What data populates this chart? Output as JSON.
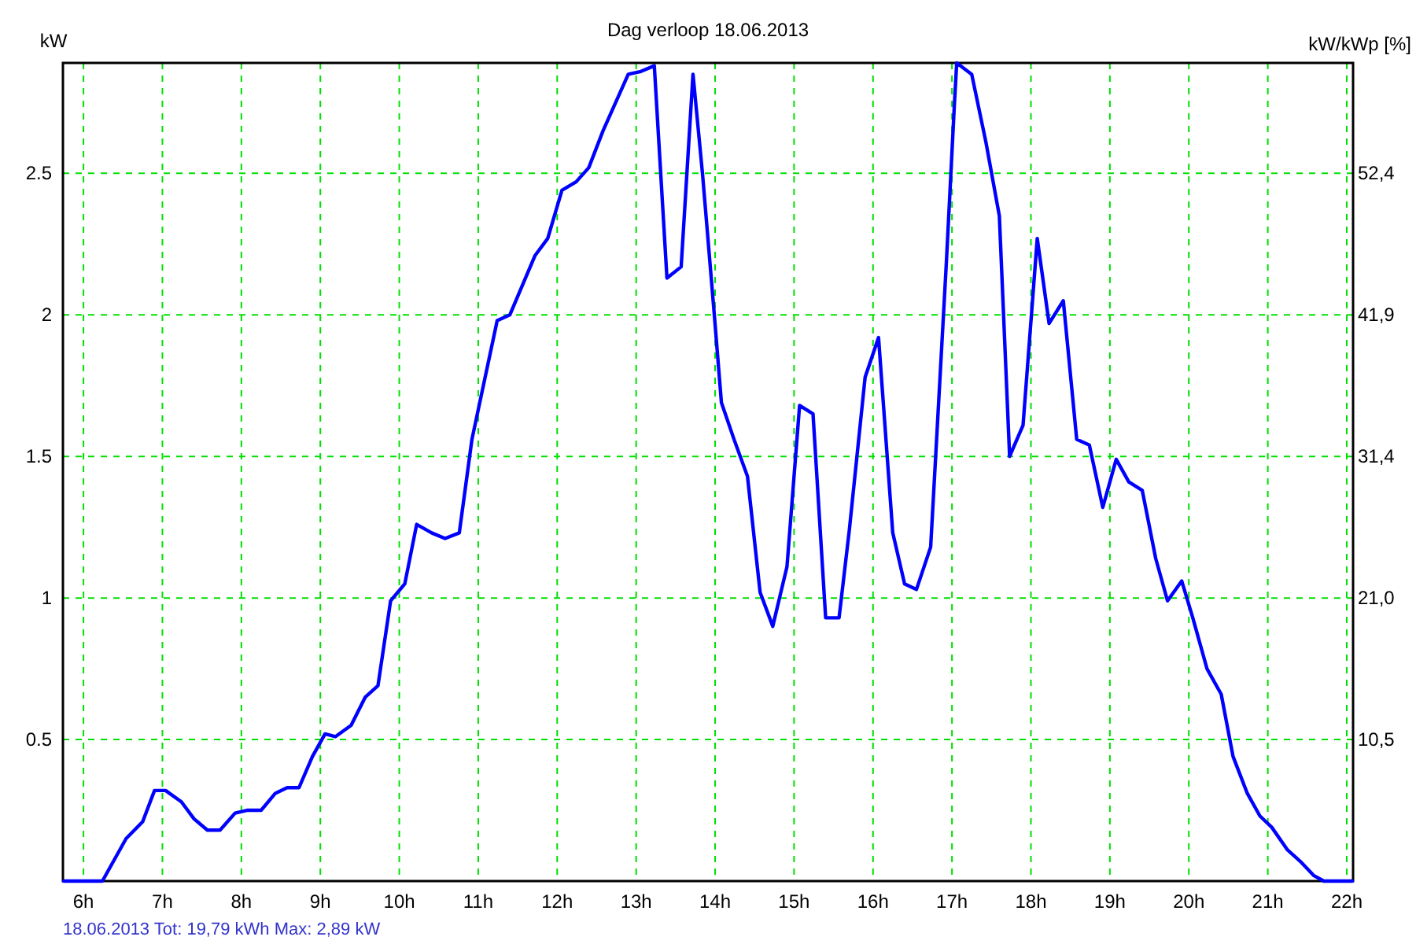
{
  "chart_data": {
    "type": "line",
    "title": "Dag  verloop 18.06.2013",
    "ylabel": "kW",
    "y2label": "kW/kWp [%]",
    "annotations": [
      "18.06.2013 Tot: 19,79 kWh Max: 2,89 kW"
    ],
    "x": [
      5.75,
      6.24,
      6.54,
      6.75,
      6.9,
      7.04,
      7.24,
      7.4,
      7.57,
      7.73,
      7.92,
      8.07,
      8.25,
      8.43,
      8.58,
      8.73,
      8.9,
      9.06,
      9.19,
      9.39,
      9.57,
      9.73,
      9.89,
      10.07,
      10.22,
      10.41,
      10.58,
      10.76,
      10.92,
      11.24,
      11.4,
      11.72,
      11.88,
      12.06,
      12.24,
      12.4,
      12.58,
      12.9,
      13.06,
      13.23,
      13.39,
      13.57,
      13.72,
      13.84,
      13.99,
      14.08,
      14.24,
      14.41,
      14.57,
      14.73,
      14.91,
      15.07,
      15.24,
      15.4,
      15.57,
      15.7,
      15.9,
      16.07,
      16.25,
      16.4,
      16.55,
      16.73,
      16.93,
      17.03,
      17.06,
      17.25,
      17.43,
      17.6,
      17.73,
      17.9,
      18.08,
      18.23,
      18.41,
      18.58,
      18.74,
      18.91,
      19.08,
      19.24,
      19.41,
      19.58,
      19.73,
      19.91,
      20.05,
      20.23,
      20.41,
      20.56,
      20.74,
      20.9,
      21.05,
      21.25,
      21.41,
      21.58,
      21.71,
      22.07
    ],
    "series": [
      {
        "color": "#0000ff",
        "values": [
          0,
          0,
          0.15,
          0.21,
          0.32,
          0.32,
          0.28,
          0.22,
          0.18,
          0.18,
          0.24,
          0.25,
          0.25,
          0.31,
          0.33,
          0.33,
          0.44,
          0.52,
          0.51,
          0.55,
          0.65,
          0.69,
          0.99,
          1.05,
          1.26,
          1.23,
          1.21,
          1.23,
          1.56,
          1.98,
          2.0,
          2.21,
          2.27,
          2.44,
          2.47,
          2.52,
          2.65,
          2.85,
          2.86,
          2.88,
          2.13,
          2.17,
          2.85,
          2.5,
          2.0,
          1.69,
          1.56,
          1.43,
          1.02,
          0.9,
          1.11,
          1.68,
          1.65,
          0.93,
          0.93,
          1.24,
          1.78,
          1.92,
          1.23,
          1.05,
          1.03,
          1.18,
          2.19,
          2.74,
          2.89,
          2.85,
          2.61,
          2.35,
          1.5,
          1.61,
          2.27,
          1.97,
          2.05,
          1.56,
          1.54,
          1.32,
          1.49,
          1.41,
          1.38,
          1.14,
          0.99,
          1.06,
          0.93,
          0.75,
          0.66,
          0.44,
          0.31,
          0.23,
          0.19,
          0.11,
          0.07,
          0.02,
          0,
          0
        ]
      }
    ],
    "xlim": [
      5.74,
      22.08
    ],
    "xticks": [
      {
        "value": 6,
        "label": "6h"
      },
      {
        "value": 7,
        "label": "7h"
      },
      {
        "value": 8,
        "label": "8h"
      },
      {
        "value": 9,
        "label": "9h"
      },
      {
        "value": 10,
        "label": "10h"
      },
      {
        "value": 11,
        "label": "11h"
      },
      {
        "value": 12,
        "label": "12h"
      },
      {
        "value": 13,
        "label": "13h"
      },
      {
        "value": 14,
        "label": "14h"
      },
      {
        "value": 15,
        "label": "15h"
      },
      {
        "value": 16,
        "label": "16h"
      },
      {
        "value": 17,
        "label": "17h"
      },
      {
        "value": 18,
        "label": "18h"
      },
      {
        "value": 19,
        "label": "19h"
      },
      {
        "value": 20,
        "label": "20h"
      },
      {
        "value": 21,
        "label": "21h"
      },
      {
        "value": 22,
        "label": "22h"
      }
    ],
    "ylim": [
      0,
      2.89
    ],
    "yticks": [
      0.5,
      1,
      1.5,
      2,
      2.5
    ],
    "y2lim": [
      0,
      60.57
    ],
    "y2ticks": [
      {
        "value": 10.48,
        "label": "10,5"
      },
      {
        "value": 20.96,
        "label": "21,0"
      },
      {
        "value": 31.44,
        "label": "31,4"
      },
      {
        "value": 41.92,
        "label": "41,9"
      },
      {
        "value": 52.4,
        "label": "52,4"
      }
    ],
    "grid": true,
    "marker": "none",
    "line_style": "solid"
  }
}
